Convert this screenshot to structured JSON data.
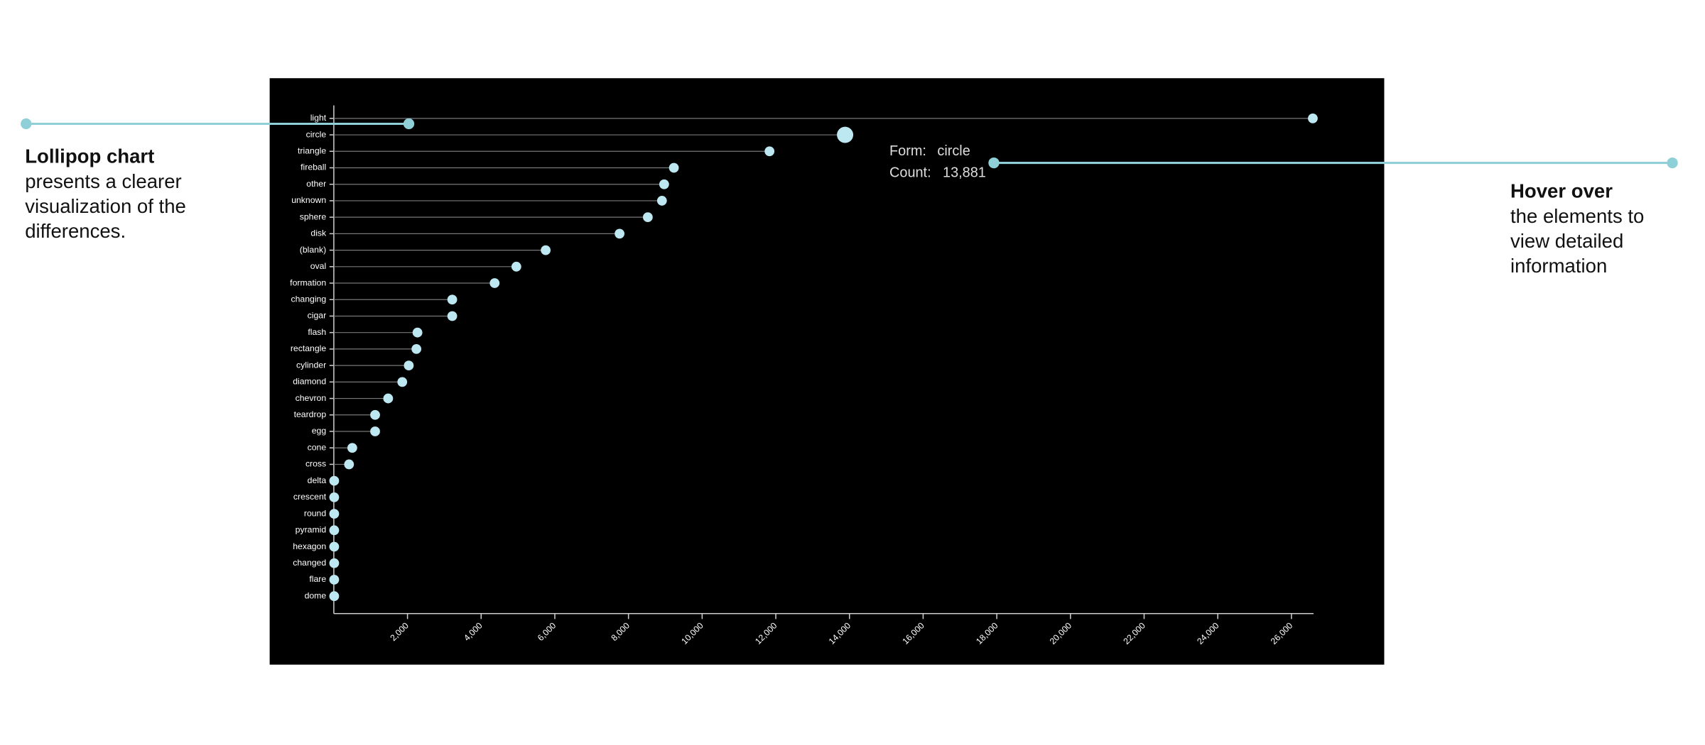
{
  "chart_data": {
    "type": "lollipop",
    "categories": [
      "light",
      "circle",
      "triangle",
      "fireball",
      "other",
      "unknown",
      "sphere",
      "disk",
      "(blank)",
      "oval",
      "formation",
      "changing",
      "cigar",
      "flash",
      "rectangle",
      "cylinder",
      "diamond",
      "chevron",
      "teardrop",
      "egg",
      "cone",
      "cross",
      "delta",
      "crescent",
      "round",
      "pyramid",
      "hexagon",
      "changed",
      "flare",
      "dome"
    ],
    "values": [
      26580,
      13881,
      11829,
      9233,
      8968,
      8909,
      8525,
      7758,
      5752,
      4956,
      4366,
      3215,
      3215,
      2271,
      2242,
      2035,
      1858,
      1475,
      1121,
      1121,
      501,
      413,
      10,
      10,
      10,
      10,
      10,
      10,
      10,
      10
    ],
    "color": "#bde8f2",
    "xlim": [
      0,
      26600
    ],
    "xticks": [
      {
        "value": 2000,
        "label": "2,000"
      },
      {
        "value": 4000,
        "label": "4,000"
      },
      {
        "value": 6000,
        "label": "6,000"
      },
      {
        "value": 8000,
        "label": "8,000"
      },
      {
        "value": 10000,
        "label": "10,000"
      },
      {
        "value": 12000,
        "label": "12,000"
      },
      {
        "value": 14000,
        "label": "14,000"
      },
      {
        "value": 16000,
        "label": "16,000"
      },
      {
        "value": 18000,
        "label": "18,000"
      },
      {
        "value": 20000,
        "label": "20,000"
      },
      {
        "value": 22000,
        "label": "22,000"
      },
      {
        "value": 24000,
        "label": "24,000"
      },
      {
        "value": 26000,
        "label": "26,000"
      }
    ]
  },
  "tooltip": {
    "form_label": "Form:",
    "form": "circle",
    "count_label": "Count:",
    "count": "13,881"
  },
  "annotations": {
    "left": {
      "title": "Lollipop chart",
      "lines": [
        "presents a clearer",
        "visualization of the",
        "differences."
      ]
    },
    "right": {
      "title": "Hover over",
      "lines": [
        "the elements to",
        "view detailed",
        "information"
      ]
    }
  }
}
